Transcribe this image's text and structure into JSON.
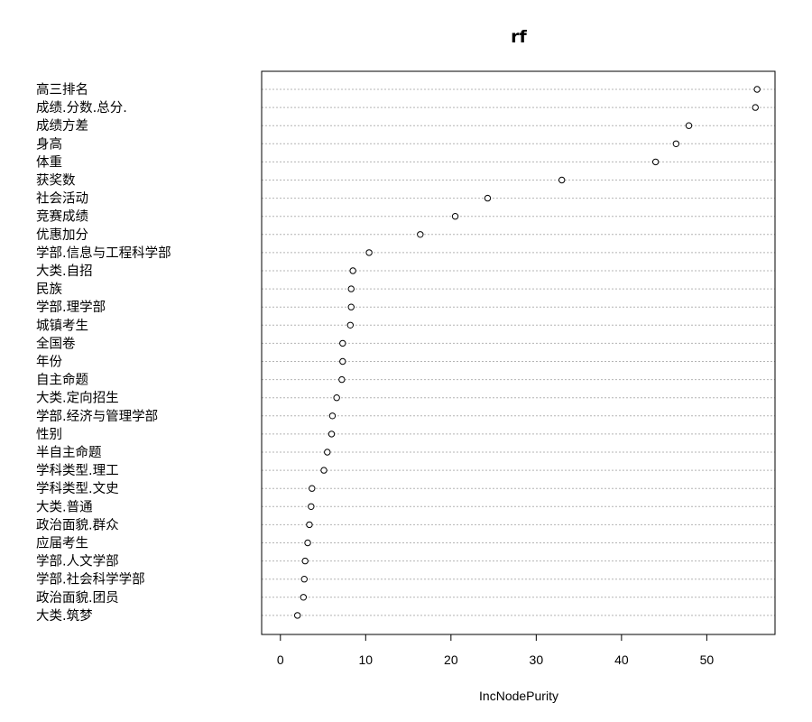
{
  "chart_data": {
    "type": "scatter",
    "title": "rf",
    "xlabel": "IncNodePurity",
    "ylabel": "",
    "xlim": [
      -2.2,
      58.0
    ],
    "xticks": [
      0,
      10,
      20,
      30,
      40,
      50
    ],
    "grid": false,
    "legend": "none",
    "categories": [
      "高三排名",
      "成绩.分数.总分.",
      "成绩方差",
      "身高",
      "体重",
      "获奖数",
      "社会活动",
      "竞赛成绩",
      "优惠加分",
      "学部.信息与工程科学部",
      "大类.自招",
      "民族",
      "学部.理学部",
      "城镇考生",
      "全国卷",
      "年份",
      "自主命题",
      "大类.定向招生",
      "学部.经济与管理学部",
      "性别",
      "半自主命题",
      "学科类型.理工",
      "学科类型.文史",
      "大类.普通",
      "政治面貌.群众",
      "应届考生",
      "学部.人文学部",
      "学部.社会科学学部",
      "政治面貌.团员",
      "大类.筑梦"
    ],
    "values": [
      55.9,
      55.7,
      47.9,
      46.4,
      44.0,
      33.0,
      24.3,
      20.5,
      16.4,
      10.4,
      8.5,
      8.3,
      8.3,
      8.2,
      7.3,
      7.3,
      7.2,
      6.6,
      6.1,
      6.0,
      5.5,
      5.1,
      3.7,
      3.6,
      3.4,
      3.2,
      2.9,
      2.8,
      2.7,
      2.0
    ]
  }
}
